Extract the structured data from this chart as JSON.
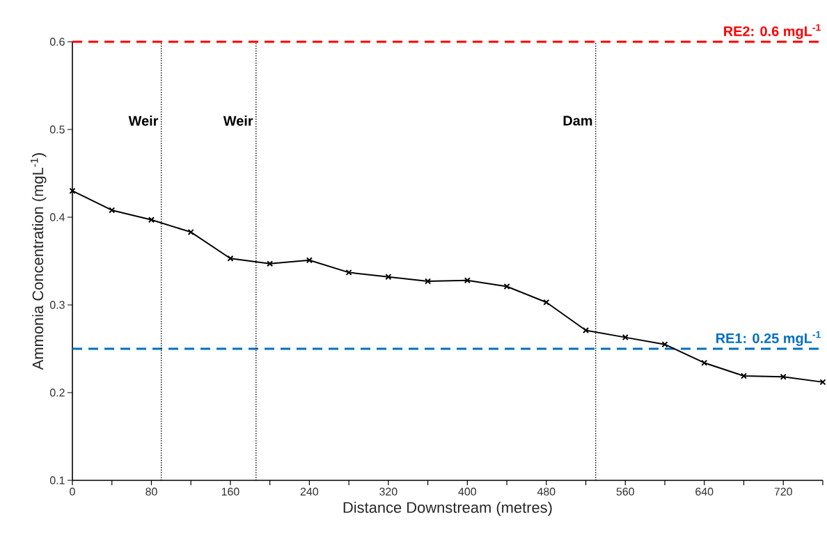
{
  "chart_data": {
    "type": "line",
    "xlabel": "Distance Downstream (metres)",
    "ylabel": "Ammonia Concentration (mgL$^{-1}$)",
    "x": [
      0,
      40,
      80,
      120,
      160,
      200,
      240,
      280,
      320,
      360,
      400,
      440,
      480,
      520,
      560,
      600,
      640,
      680,
      720,
      760
    ],
    "series": [
      {
        "color": "#000000",
        "values": [
          0.43,
          0.408,
          0.397,
          0.383,
          0.353,
          0.347,
          0.351,
          0.337,
          0.332,
          0.327,
          0.328,
          0.321,
          0.303,
          0.271,
          0.263,
          0.255,
          0.234,
          0.219,
          0.218,
          0.212
        ]
      }
    ],
    "marker": "cross",
    "line_style": "solid",
    "xlim": [
      0,
      760
    ],
    "ylim": [
      0.1,
      0.6
    ],
    "xticks": [
      0,
      {
        "value": 40,
        "label": null
      },
      80,
      {
        "value": 120,
        "label": null
      },
      160,
      {
        "value": 200,
        "label": null
      },
      240,
      {
        "value": 280,
        "label": null
      },
      320,
      {
        "value": 360,
        "label": null
      },
      400,
      {
        "value": 440,
        "label": null
      },
      480,
      {
        "value": 520,
        "label": null
      },
      560,
      {
        "value": 600,
        "label": null
      },
      640,
      {
        "value": 680,
        "label": null
      },
      720,
      {
        "value": 760,
        "label": null
      }
    ],
    "yticks": [
      0.1,
      0.2,
      0.3,
      0.4,
      0.5,
      0.6
    ],
    "ref_lines": [
      {
        "axis": "y",
        "value": 0.6,
        "label": "RE2: 0.6 mgL$^{-1}$",
        "color": "#ff0000",
        "line_style": "dashed"
      },
      {
        "axis": "y",
        "value": 0.25,
        "label": "RE1: 0.25 mgL$^{-1}$",
        "color": "#0070c0",
        "line_style": "dashed"
      },
      {
        "axis": "x",
        "value": 90,
        "label": "Weir",
        "color": "#000000",
        "line_style": "dotted"
      },
      {
        "axis": "x",
        "value": 186,
        "label": "Weir",
        "color": "#000000",
        "line_style": "dotted"
      },
      {
        "axis": "x",
        "value": 530,
        "label": "Dam",
        "color": "#000000",
        "line_style": "dotted"
      }
    ],
    "grid": false
  }
}
